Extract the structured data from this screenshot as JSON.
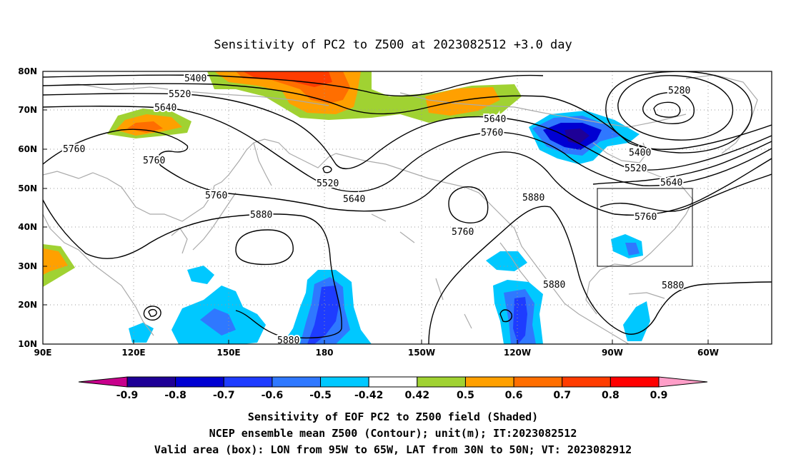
{
  "title": "Sensitivity of PC2 to Z500 at 2023082512 +3.0 day",
  "map": {
    "lat_ticks": [
      "80N",
      "70N",
      "60N",
      "50N",
      "40N",
      "30N",
      "20N",
      "10N"
    ],
    "lon_ticks": [
      "90E",
      "120E",
      "150E",
      "180",
      "150W",
      "120W",
      "90W",
      "60W"
    ],
    "lon_range": [
      "90E",
      "40W"
    ],
    "lat_range": [
      "10N",
      "80N"
    ],
    "grid": "dotted"
  },
  "contour_labels": [
    {
      "value": "5400",
      "near": "upper-left"
    },
    {
      "value": "5520",
      "near": "upper-left"
    },
    {
      "value": "5640",
      "near": "upper-left"
    },
    {
      "value": "5760",
      "near": "left"
    },
    {
      "value": "5760",
      "near": "upper-left"
    },
    {
      "value": "5760",
      "near": "left-center"
    },
    {
      "value": "5880",
      "near": "center-left"
    },
    {
      "value": "5520",
      "near": "center"
    },
    {
      "value": "5640",
      "near": "center"
    },
    {
      "value": "5760",
      "near": "center-right"
    },
    {
      "value": "5880",
      "near": "bottom-center"
    },
    {
      "value": "5640",
      "near": "upper-center-right"
    },
    {
      "value": "5760",
      "near": "upper-center-right"
    },
    {
      "value": "5880",
      "near": "center-right"
    },
    {
      "value": "5880",
      "near": "lower-right"
    },
    {
      "value": "5880",
      "near": "lower-right"
    },
    {
      "value": "5280",
      "near": "upper-right"
    },
    {
      "value": "5400",
      "near": "right"
    },
    {
      "value": "5520",
      "near": "right"
    },
    {
      "value": "5640",
      "near": "right"
    },
    {
      "value": "5760",
      "near": "right-box"
    }
  ],
  "colorbar": {
    "labels": [
      "-0.9",
      "-0.8",
      "-0.7",
      "-0.6",
      "-0.5",
      "-0.42",
      "0.42",
      "0.5",
      "0.6",
      "0.7",
      "0.8",
      "0.9"
    ],
    "colors": [
      "#1e0096",
      "#0000d2",
      "#1e3cff",
      "#2f78ff",
      "#00c8ff",
      "#ffffff",
      "#a0d232",
      "#ffa000",
      "#ff6e00",
      "#ff3c00",
      "#ff0000"
    ],
    "low_arrow_color": "#c8008c",
    "high_arrow_color": "#ff9ec8"
  },
  "captions": {
    "line1": "Sensitivity of EOF PC2 to Z500 field (Shaded)",
    "line2": "NCEP ensemble mean Z500 (Contour); unit(m); IT:2023082512",
    "line3": "Valid area (box): LON from 95W to 65W, LAT from 30N to 50N; VT: 2023082912"
  },
  "valid_box": {
    "lon": [
      "95W",
      "65W"
    ],
    "lat": [
      "30N",
      "50N"
    ]
  }
}
